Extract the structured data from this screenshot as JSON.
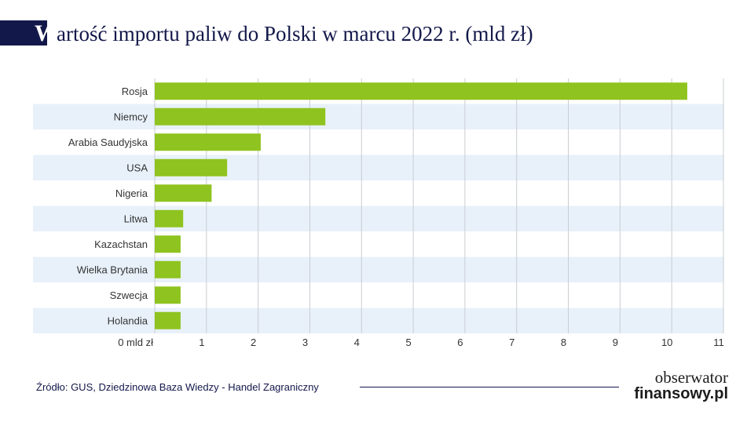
{
  "title": {
    "initial": "W",
    "rest": "artość importu paliw do Polski w marcu 2022 r. (mld zł)"
  },
  "chart_data": {
    "type": "bar",
    "orientation": "horizontal",
    "title": "Wartość importu paliw do Polski w marcu 2022 r. (mld zł)",
    "xlabel": "",
    "ylabel": "",
    "categories": [
      "Rosja",
      "Niemcy",
      "Arabia Saudyjska",
      "USA",
      "Nigeria",
      "Litwa",
      "Kazachstan",
      "Wielka Brytania",
      "Szwecja",
      "Holandia"
    ],
    "values": [
      10.3,
      3.3,
      2.05,
      1.4,
      1.1,
      0.55,
      0.5,
      0.5,
      0.5,
      0.5
    ],
    "xlim": [
      0,
      11
    ],
    "x_ticks": [
      "0 mld zł",
      "1",
      "2",
      "3",
      "4",
      "5",
      "6",
      "7",
      "8",
      "9",
      "10",
      "11"
    ],
    "grid": "vertical",
    "row_banding": true,
    "colors": {
      "bar": "#8fc31f",
      "band": "#e8f1fa",
      "grid": "#c9ccd2",
      "text": "#333333",
      "title": "#13184a"
    }
  },
  "footer": {
    "source": "Źródło: GUS, Dziedzinowa Baza Wiedzy - Handel Zagraniczny"
  },
  "logo": {
    "line1": "obserwator",
    "line2": "finansowy.pl"
  }
}
